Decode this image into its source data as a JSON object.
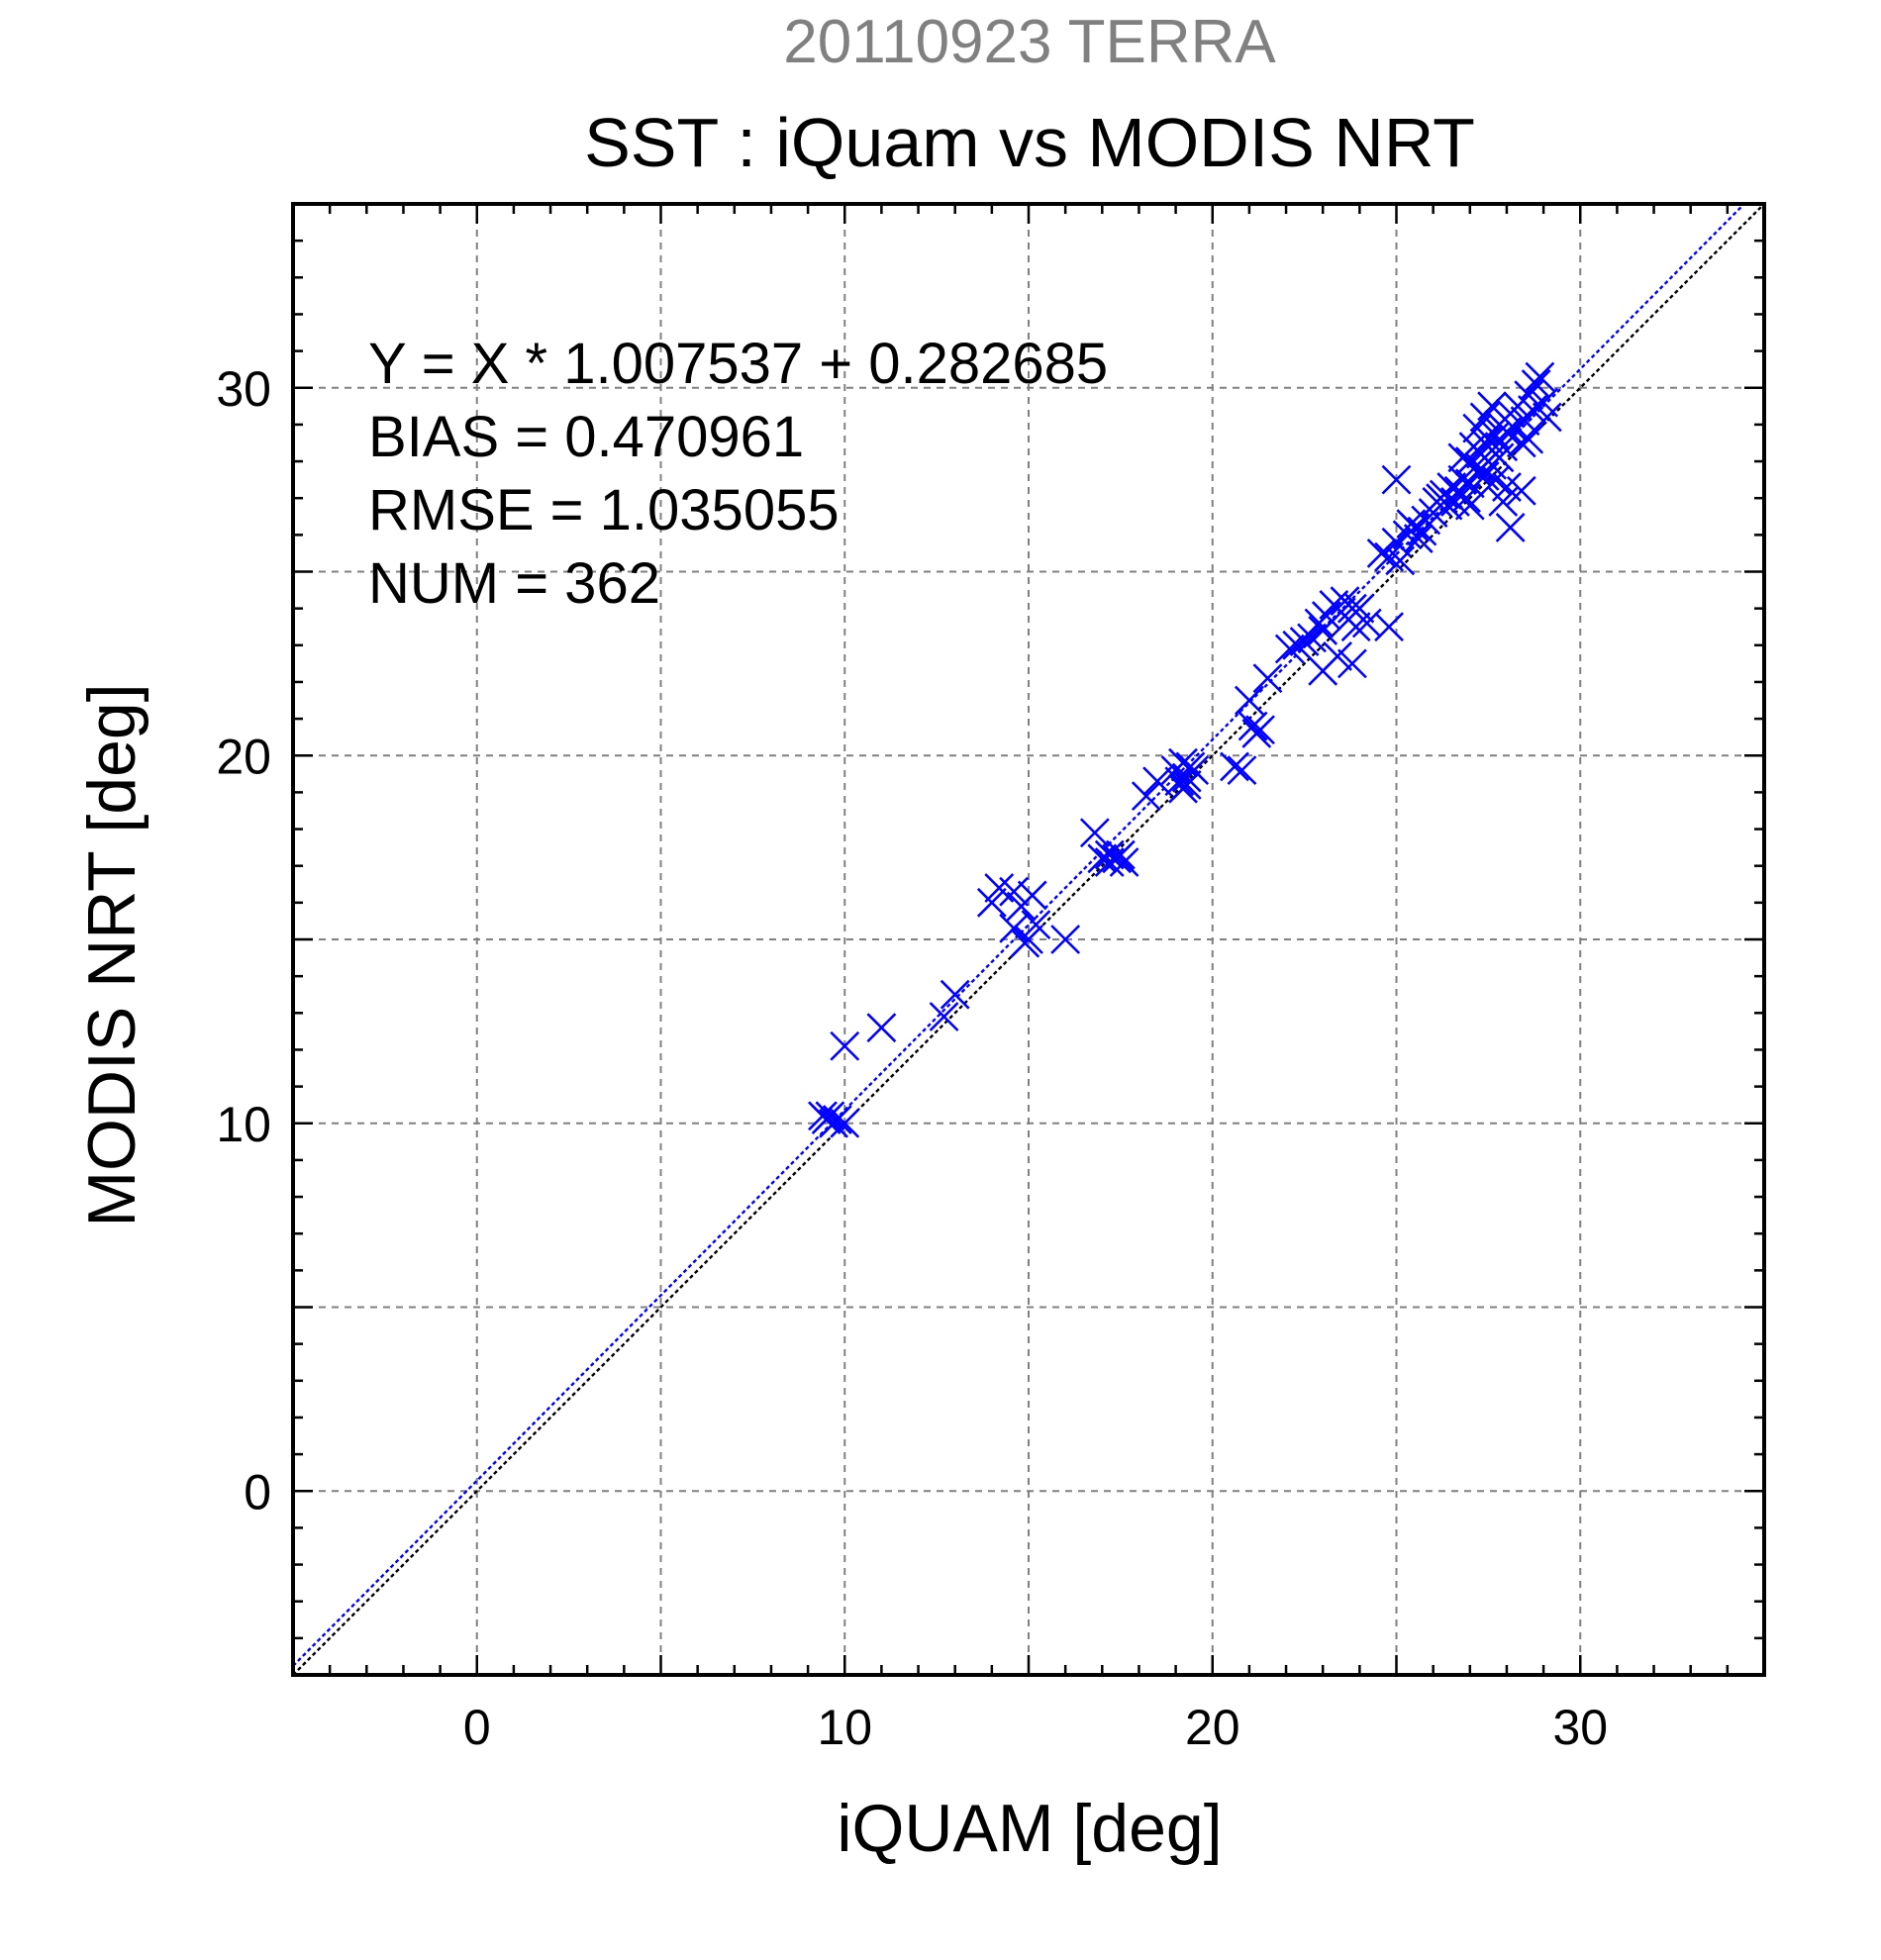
{
  "chart_data": {
    "type": "scatter",
    "supertitle": "20110923 TERRA",
    "title": "SST : iQuam vs MODIS NRT",
    "xlabel": "iQUAM [deg]",
    "ylabel": "MODIS NRT [deg]",
    "xlim": [
      -5,
      35
    ],
    "ylim": [
      -5,
      35
    ],
    "xticks": [
      0,
      10,
      20,
      30
    ],
    "yticks": [
      0,
      10,
      20,
      30
    ],
    "grid": true,
    "colors": {
      "points": "#0000ff",
      "fit_line": "#0000ff",
      "identity_line": "#000000",
      "supertitle": "#808080"
    },
    "stats": {
      "equation": "Y = X * 1.007537 + 0.282685",
      "bias": "BIAS = 0.470961",
      "rmse": "RMSE = 1.035055",
      "num": "NUM = 362"
    },
    "lines": [
      {
        "kind": "regression",
        "slope": 1.007537,
        "intercept": 0.282685,
        "style": "dotted",
        "color": "#0000ff"
      },
      {
        "kind": "identity",
        "slope": 1.0,
        "intercept": 0.0,
        "style": "dotted",
        "color": "#000000"
      }
    ],
    "series": [
      {
        "marker": "x",
        "color": "#0000ff",
        "points": [
          [
            9.4,
            10.2
          ],
          [
            9.6,
            10.2
          ],
          [
            9.8,
            10.1
          ],
          [
            10.0,
            10.0
          ],
          [
            9.5,
            10.1
          ],
          [
            9.7,
            10.0
          ],
          [
            10.0,
            12.1
          ],
          [
            11.0,
            12.6
          ],
          [
            12.7,
            12.9
          ],
          [
            13.0,
            13.5
          ],
          [
            14.0,
            16.0
          ],
          [
            14.2,
            16.4
          ],
          [
            14.6,
            16.3
          ],
          [
            14.8,
            15.9
          ],
          [
            15.1,
            16.2
          ],
          [
            14.6,
            15.3
          ],
          [
            15.0,
            15.0
          ],
          [
            14.9,
            14.9
          ],
          [
            15.2,
            15.4
          ],
          [
            16.0,
            15.0
          ],
          [
            16.8,
            17.9
          ],
          [
            17.0,
            17.2
          ],
          [
            17.2,
            17.3
          ],
          [
            17.4,
            17.2
          ],
          [
            17.6,
            17.1
          ],
          [
            17.2,
            17.1
          ],
          [
            17.5,
            17.3
          ],
          [
            18.2,
            18.9
          ],
          [
            18.5,
            19.3
          ],
          [
            19.0,
            19.6
          ],
          [
            19.2,
            19.8
          ],
          [
            19.3,
            19.4
          ],
          [
            19.1,
            19.3
          ],
          [
            19.4,
            19.7
          ],
          [
            19.2,
            19.1
          ],
          [
            19.3,
            19.2
          ],
          [
            19.5,
            19.6
          ],
          [
            20.6,
            19.7
          ],
          [
            20.8,
            19.6
          ],
          [
            21.0,
            21.5
          ],
          [
            21.1,
            20.8
          ],
          [
            21.2,
            20.6
          ],
          [
            21.3,
            20.7
          ],
          [
            21.5,
            22.1
          ],
          [
            22.1,
            22.9
          ],
          [
            22.3,
            23.0
          ],
          [
            22.5,
            23.1
          ],
          [
            22.7,
            23.2
          ],
          [
            22.9,
            23.6
          ],
          [
            23.0,
            23.4
          ],
          [
            23.1,
            23.8
          ],
          [
            23.3,
            24.1
          ],
          [
            23.0,
            22.3
          ],
          [
            23.4,
            22.7
          ],
          [
            23.5,
            23.9
          ],
          [
            23.6,
            24.2
          ],
          [
            23.7,
            23.7
          ],
          [
            23.8,
            24.0
          ],
          [
            23.9,
            23.5
          ],
          [
            24.0,
            24.0
          ],
          [
            23.8,
            22.5
          ],
          [
            24.2,
            23.6
          ],
          [
            24.8,
            23.5
          ],
          [
            24.6,
            25.5
          ],
          [
            24.8,
            25.4
          ],
          [
            25.0,
            25.8
          ],
          [
            25.1,
            25.3
          ],
          [
            25.0,
            27.5
          ],
          [
            25.3,
            26.0
          ],
          [
            25.5,
            26.2
          ],
          [
            25.6,
            25.9
          ],
          [
            25.7,
            26.1
          ],
          [
            25.4,
            26.3
          ],
          [
            25.8,
            26.4
          ],
          [
            26.0,
            26.6
          ],
          [
            26.1,
            26.9
          ],
          [
            26.2,
            27.0
          ],
          [
            26.3,
            27.1
          ],
          [
            26.4,
            26.8
          ],
          [
            26.5,
            27.3
          ],
          [
            26.6,
            26.9
          ],
          [
            26.7,
            27.2
          ],
          [
            26.8,
            27.5
          ],
          [
            26.9,
            27.0
          ],
          [
            27.0,
            27.4
          ],
          [
            27.0,
            28.0
          ],
          [
            27.1,
            28.4
          ],
          [
            27.2,
            27.7
          ],
          [
            27.3,
            28.2
          ],
          [
            27.3,
            27.8
          ],
          [
            27.4,
            28.5
          ],
          [
            27.4,
            27.6
          ],
          [
            27.5,
            28.0
          ],
          [
            27.5,
            28.6
          ],
          [
            27.6,
            27.9
          ],
          [
            27.6,
            28.3
          ],
          [
            27.7,
            28.7
          ],
          [
            27.7,
            27.5
          ],
          [
            27.8,
            28.1
          ],
          [
            27.8,
            29.0
          ],
          [
            27.9,
            28.4
          ],
          [
            27.9,
            26.9
          ],
          [
            28.0,
            28.8
          ],
          [
            28.0,
            27.3
          ],
          [
            28.1,
            29.3
          ],
          [
            28.1,
            26.2
          ],
          [
            28.2,
            28.9
          ],
          [
            28.3,
            29.5
          ],
          [
            28.4,
            28.5
          ],
          [
            28.4,
            27.2
          ],
          [
            28.5,
            29.1
          ],
          [
            28.6,
            29.8
          ],
          [
            28.7,
            29.4
          ],
          [
            28.8,
            30.1
          ],
          [
            28.9,
            30.3
          ],
          [
            29.0,
            29.6
          ],
          [
            29.1,
            29.2
          ],
          [
            28.6,
            28.6
          ],
          [
            27.2,
            28.9
          ],
          [
            27.0,
            26.8
          ],
          [
            26.8,
            28.1
          ],
          [
            27.4,
            29.2
          ],
          [
            27.6,
            29.5
          ]
        ]
      }
    ]
  }
}
